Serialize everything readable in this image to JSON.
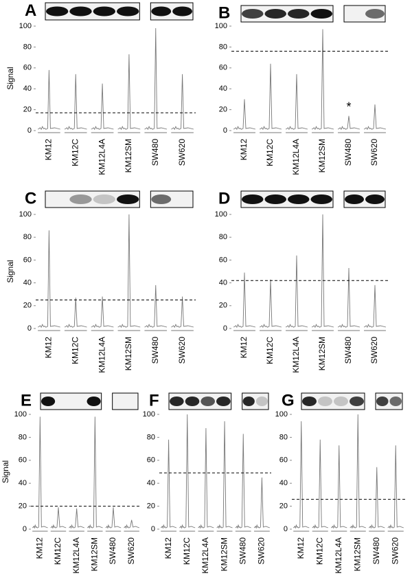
{
  "chart_data": [
    {
      "type": "peak",
      "title": "A",
      "y_label": "Signal",
      "categories": [
        "KM12",
        "KM12C",
        "KM12L4A",
        "KM12SM",
        "SW480",
        "SW620"
      ],
      "values": [
        58,
        54,
        45,
        73,
        98,
        54
      ],
      "threshold": 17,
      "ylim": [
        0,
        100
      ],
      "yticks": [
        0,
        20,
        40,
        60,
        80,
        100
      ]
    },
    {
      "type": "peak",
      "title": "B",
      "annotation": "*",
      "categories": [
        "KM12",
        "KM12C",
        "KM12L4A",
        "KM12SM",
        "SW480",
        "SW620"
      ],
      "values": [
        30,
        64,
        54,
        97,
        14,
        25
      ],
      "threshold": 76,
      "ylim": [
        0,
        100
      ],
      "yticks": [
        0,
        20,
        40,
        60,
        80,
        100
      ]
    },
    {
      "type": "peak",
      "title": "C",
      "y_label": "Signal",
      "categories": [
        "KM12",
        "KM12C",
        "KM12L4A",
        "KM12SM",
        "SW480",
        "SW620"
      ],
      "values": [
        86,
        27,
        28,
        100,
        38,
        28
      ],
      "threshold": 25,
      "ylim": [
        0,
        100
      ],
      "yticks": [
        0,
        20,
        40,
        60,
        80,
        100
      ]
    },
    {
      "type": "peak",
      "title": "D",
      "categories": [
        "KM12",
        "KM12C",
        "KM12L4A",
        "KM12SM",
        "SW480",
        "SW620"
      ],
      "values": [
        49,
        43,
        64,
        100,
        53,
        38
      ],
      "threshold": 42,
      "ylim": [
        0,
        100
      ],
      "yticks": [
        0,
        20,
        40,
        60,
        80,
        100
      ]
    },
    {
      "type": "peak",
      "title": "E",
      "y_label": "Signal",
      "categories": [
        "KM12",
        "KM12C",
        "KM12L4A",
        "KM12SM",
        "SW480",
        "SW620"
      ],
      "values": [
        98,
        19,
        18,
        98,
        19,
        8
      ],
      "threshold": 20,
      "ylim": [
        0,
        100
      ],
      "yticks": [
        0,
        20,
        40,
        60,
        80,
        100
      ]
    },
    {
      "type": "peak",
      "title": "F",
      "categories": [
        "KM12",
        "KM12C",
        "KM12L4A",
        "KM12SM",
        "SW480",
        "SW620"
      ],
      "values": [
        78,
        100,
        88,
        94,
        83,
        45
      ],
      "threshold": 49,
      "ylim": [
        0,
        100
      ],
      "yticks": [
        0,
        20,
        40,
        60,
        80,
        100
      ]
    },
    {
      "type": "peak",
      "title": "G",
      "categories": [
        "KM12",
        "KM12C",
        "KM12L4A",
        "KM12SM",
        "SW480",
        "SW620"
      ],
      "values": [
        94,
        78,
        73,
        100,
        54,
        73
      ],
      "threshold": 26,
      "ylim": [
        0,
        100
      ],
      "yticks": [
        0,
        20,
        40,
        60,
        80,
        100
      ]
    }
  ]
}
